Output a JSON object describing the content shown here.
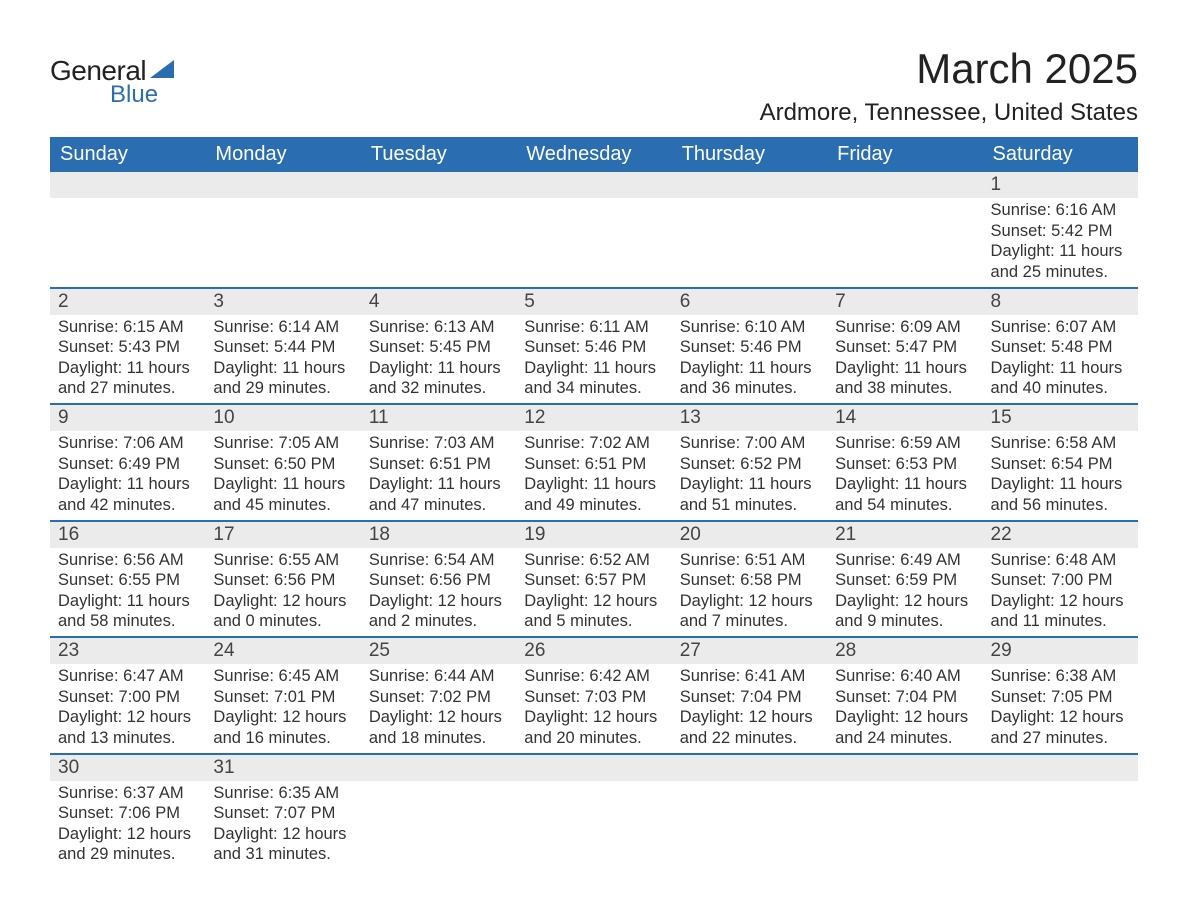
{
  "logo": {
    "general": "General",
    "blue": "Blue"
  },
  "title": "March 2025",
  "location": "Ardmore, Tennessee, United States",
  "weekday_headers": [
    "Sunday",
    "Monday",
    "Tuesday",
    "Wednesday",
    "Thursday",
    "Friday",
    "Saturday"
  ],
  "colors": {
    "header_bg": "#2a6db0",
    "header_text": "#ffffff",
    "daynum_bg": "#ebebeb",
    "row_divider": "#2a6db0",
    "text": "#333333",
    "logo_accent": "#2a6db0"
  },
  "typography": {
    "title_fontsize_pt": 32,
    "location_fontsize_pt": 18,
    "header_fontsize_pt": 15,
    "daynum_fontsize_pt": 14,
    "body_fontsize_pt": 12
  },
  "layout": {
    "columns": 7,
    "rows": 6,
    "first_day_column_index": 6
  },
  "weeks": [
    [
      {
        "empty": true
      },
      {
        "empty": true
      },
      {
        "empty": true
      },
      {
        "empty": true
      },
      {
        "empty": true
      },
      {
        "empty": true
      },
      {
        "day": "1",
        "sunrise": "Sunrise: 6:16 AM",
        "sunset": "Sunset: 5:42 PM",
        "daylight": "Daylight: 11 hours and 25 minutes."
      }
    ],
    [
      {
        "day": "2",
        "sunrise": "Sunrise: 6:15 AM",
        "sunset": "Sunset: 5:43 PM",
        "daylight": "Daylight: 11 hours and 27 minutes."
      },
      {
        "day": "3",
        "sunrise": "Sunrise: 6:14 AM",
        "sunset": "Sunset: 5:44 PM",
        "daylight": "Daylight: 11 hours and 29 minutes."
      },
      {
        "day": "4",
        "sunrise": "Sunrise: 6:13 AM",
        "sunset": "Sunset: 5:45 PM",
        "daylight": "Daylight: 11 hours and 32 minutes."
      },
      {
        "day": "5",
        "sunrise": "Sunrise: 6:11 AM",
        "sunset": "Sunset: 5:46 PM",
        "daylight": "Daylight: 11 hours and 34 minutes."
      },
      {
        "day": "6",
        "sunrise": "Sunrise: 6:10 AM",
        "sunset": "Sunset: 5:46 PM",
        "daylight": "Daylight: 11 hours and 36 minutes."
      },
      {
        "day": "7",
        "sunrise": "Sunrise: 6:09 AM",
        "sunset": "Sunset: 5:47 PM",
        "daylight": "Daylight: 11 hours and 38 minutes."
      },
      {
        "day": "8",
        "sunrise": "Sunrise: 6:07 AM",
        "sunset": "Sunset: 5:48 PM",
        "daylight": "Daylight: 11 hours and 40 minutes."
      }
    ],
    [
      {
        "day": "9",
        "sunrise": "Sunrise: 7:06 AM",
        "sunset": "Sunset: 6:49 PM",
        "daylight": "Daylight: 11 hours and 42 minutes."
      },
      {
        "day": "10",
        "sunrise": "Sunrise: 7:05 AM",
        "sunset": "Sunset: 6:50 PM",
        "daylight": "Daylight: 11 hours and 45 minutes."
      },
      {
        "day": "11",
        "sunrise": "Sunrise: 7:03 AM",
        "sunset": "Sunset: 6:51 PM",
        "daylight": "Daylight: 11 hours and 47 minutes."
      },
      {
        "day": "12",
        "sunrise": "Sunrise: 7:02 AM",
        "sunset": "Sunset: 6:51 PM",
        "daylight": "Daylight: 11 hours and 49 minutes."
      },
      {
        "day": "13",
        "sunrise": "Sunrise: 7:00 AM",
        "sunset": "Sunset: 6:52 PM",
        "daylight": "Daylight: 11 hours and 51 minutes."
      },
      {
        "day": "14",
        "sunrise": "Sunrise: 6:59 AM",
        "sunset": "Sunset: 6:53 PM",
        "daylight": "Daylight: 11 hours and 54 minutes."
      },
      {
        "day": "15",
        "sunrise": "Sunrise: 6:58 AM",
        "sunset": "Sunset: 6:54 PM",
        "daylight": "Daylight: 11 hours and 56 minutes."
      }
    ],
    [
      {
        "day": "16",
        "sunrise": "Sunrise: 6:56 AM",
        "sunset": "Sunset: 6:55 PM",
        "daylight": "Daylight: 11 hours and 58 minutes."
      },
      {
        "day": "17",
        "sunrise": "Sunrise: 6:55 AM",
        "sunset": "Sunset: 6:56 PM",
        "daylight": "Daylight: 12 hours and 0 minutes."
      },
      {
        "day": "18",
        "sunrise": "Sunrise: 6:54 AM",
        "sunset": "Sunset: 6:56 PM",
        "daylight": "Daylight: 12 hours and 2 minutes."
      },
      {
        "day": "19",
        "sunrise": "Sunrise: 6:52 AM",
        "sunset": "Sunset: 6:57 PM",
        "daylight": "Daylight: 12 hours and 5 minutes."
      },
      {
        "day": "20",
        "sunrise": "Sunrise: 6:51 AM",
        "sunset": "Sunset: 6:58 PM",
        "daylight": "Daylight: 12 hours and 7 minutes."
      },
      {
        "day": "21",
        "sunrise": "Sunrise: 6:49 AM",
        "sunset": "Sunset: 6:59 PM",
        "daylight": "Daylight: 12 hours and 9 minutes."
      },
      {
        "day": "22",
        "sunrise": "Sunrise: 6:48 AM",
        "sunset": "Sunset: 7:00 PM",
        "daylight": "Daylight: 12 hours and 11 minutes."
      }
    ],
    [
      {
        "day": "23",
        "sunrise": "Sunrise: 6:47 AM",
        "sunset": "Sunset: 7:00 PM",
        "daylight": "Daylight: 12 hours and 13 minutes."
      },
      {
        "day": "24",
        "sunrise": "Sunrise: 6:45 AM",
        "sunset": "Sunset: 7:01 PM",
        "daylight": "Daylight: 12 hours and 16 minutes."
      },
      {
        "day": "25",
        "sunrise": "Sunrise: 6:44 AM",
        "sunset": "Sunset: 7:02 PM",
        "daylight": "Daylight: 12 hours and 18 minutes."
      },
      {
        "day": "26",
        "sunrise": "Sunrise: 6:42 AM",
        "sunset": "Sunset: 7:03 PM",
        "daylight": "Daylight: 12 hours and 20 minutes."
      },
      {
        "day": "27",
        "sunrise": "Sunrise: 6:41 AM",
        "sunset": "Sunset: 7:04 PM",
        "daylight": "Daylight: 12 hours and 22 minutes."
      },
      {
        "day": "28",
        "sunrise": "Sunrise: 6:40 AM",
        "sunset": "Sunset: 7:04 PM",
        "daylight": "Daylight: 12 hours and 24 minutes."
      },
      {
        "day": "29",
        "sunrise": "Sunrise: 6:38 AM",
        "sunset": "Sunset: 7:05 PM",
        "daylight": "Daylight: 12 hours and 27 minutes."
      }
    ],
    [
      {
        "day": "30",
        "sunrise": "Sunrise: 6:37 AM",
        "sunset": "Sunset: 7:06 PM",
        "daylight": "Daylight: 12 hours and 29 minutes."
      },
      {
        "day": "31",
        "sunrise": "Sunrise: 6:35 AM",
        "sunset": "Sunset: 7:07 PM",
        "daylight": "Daylight: 12 hours and 31 minutes."
      },
      {
        "empty": true
      },
      {
        "empty": true
      },
      {
        "empty": true
      },
      {
        "empty": true
      },
      {
        "empty": true
      }
    ]
  ]
}
